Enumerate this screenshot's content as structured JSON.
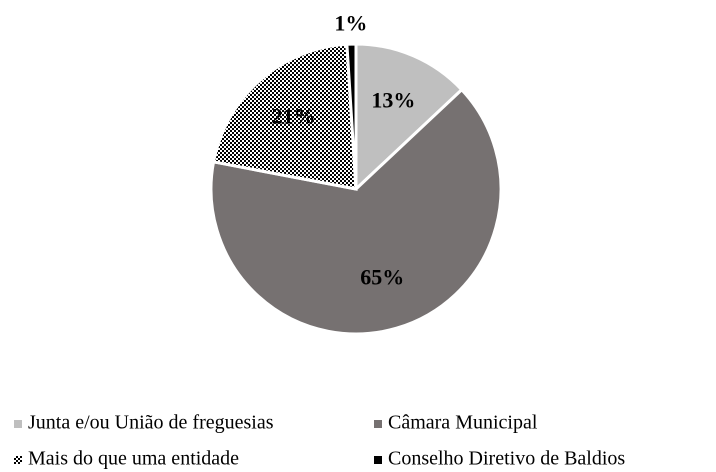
{
  "chart_data": {
    "type": "pie",
    "categories": [
      "Junta e/ou União de freguesias",
      "Câmara Municipal",
      "Mais do que uma entidade",
      "Conselho Diretivo de Baldios"
    ],
    "values": [
      13,
      65,
      21,
      1
    ],
    "value_labels": [
      "13%",
      "65%",
      "21%",
      "1%"
    ],
    "colors": [
      "#bfbfbf",
      "#767171",
      "checkerboard",
      "#000000"
    ],
    "legend": "bottom"
  }
}
